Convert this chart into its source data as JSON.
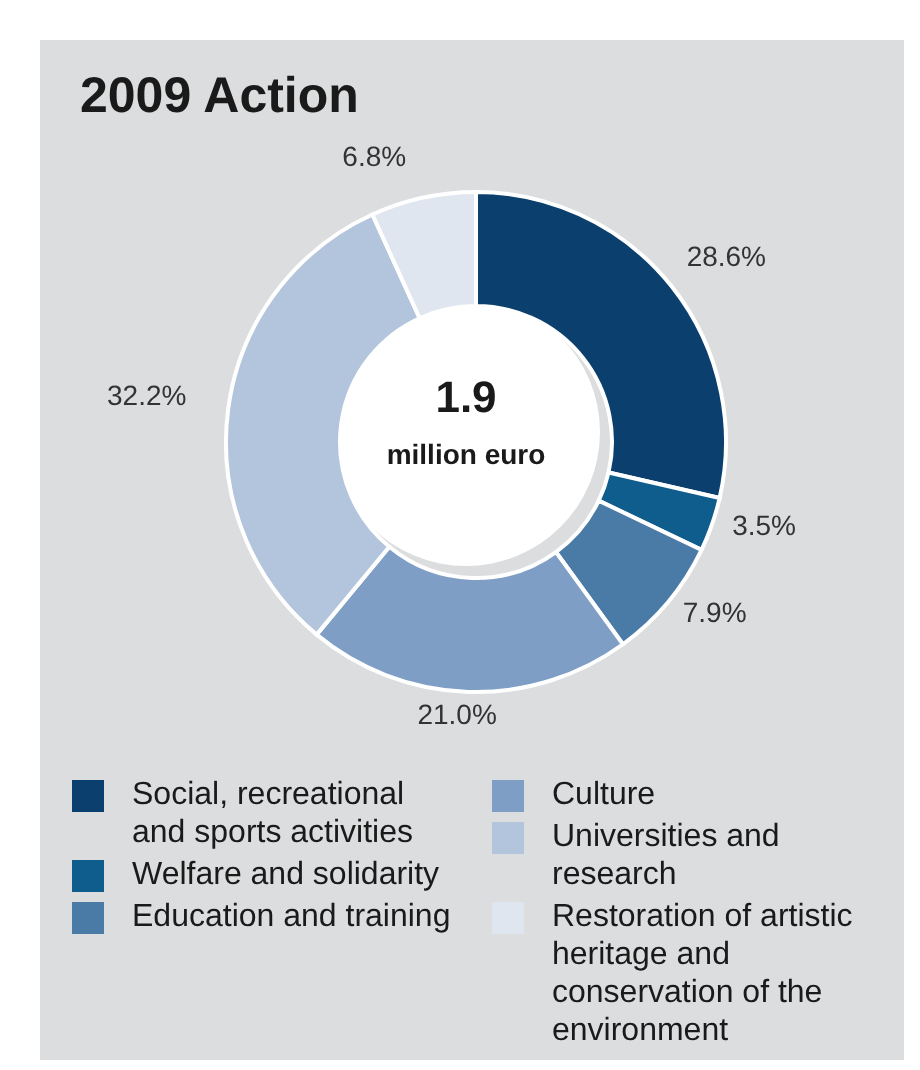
{
  "chart_data": {
    "type": "donut",
    "title": "2009 Action",
    "categories": [
      "Social, recreational and sports activities",
      "Welfare and solidarity",
      "Education and training",
      "Culture",
      "Universities and research",
      "Restoration of artistic heritage and conservation of the environment"
    ],
    "values": [
      28.6,
      3.5,
      7.9,
      21.0,
      32.2,
      6.8
    ],
    "value_labels": [
      "28.6%",
      "3.5%",
      "7.9%",
      "21.0%",
      "32.2%",
      "6.8%"
    ],
    "colors": [
      "#0b3f6e",
      "#0e5d8c",
      "#4a7ba7",
      "#7e9ec5",
      "#b3c5dd",
      "#dfe6f0"
    ],
    "annotations": [
      "1.9",
      "million euro"
    ],
    "legend": "bottom"
  }
}
